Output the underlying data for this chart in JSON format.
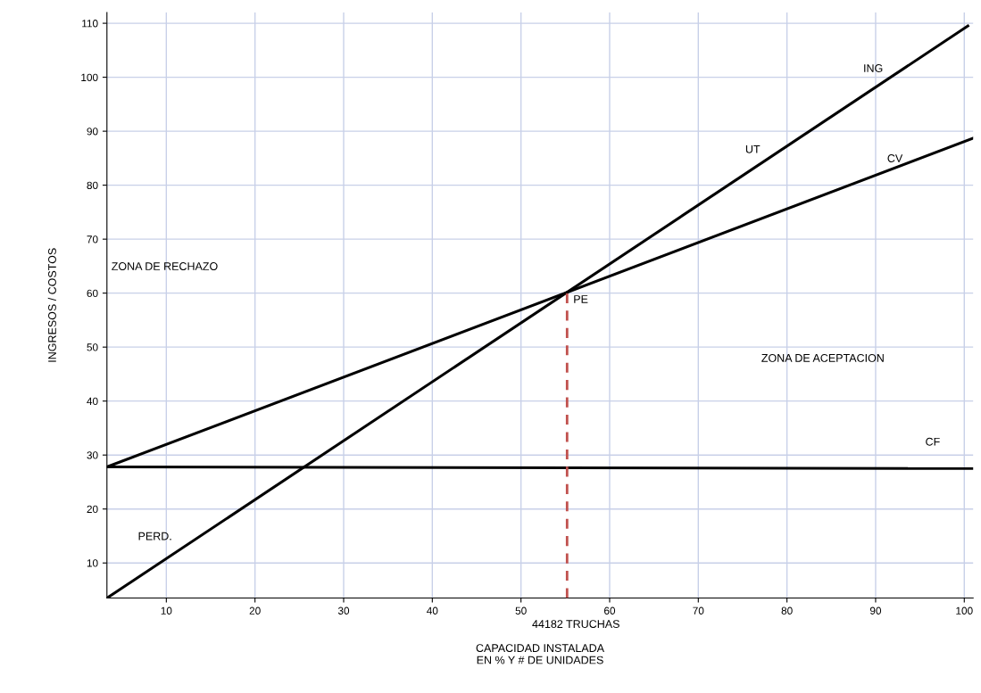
{
  "chart_data": {
    "type": "line",
    "xlabel": "CAPACIDAD INSTALADA\nEN % Y # DE UNIDADES",
    "ylabel": "INGRESOS / COSTOS",
    "xlim": [
      3.3,
      101
    ],
    "ylim": [
      3.5,
      112
    ],
    "xticks": [
      10,
      20,
      30,
      40,
      50,
      60,
      70,
      80,
      90,
      100
    ],
    "yticks": [
      10,
      20,
      30,
      40,
      50,
      60,
      70,
      80,
      90,
      100,
      110
    ],
    "grid": true,
    "legend": false,
    "marker": "none",
    "line_style": "solid",
    "series": [
      {
        "name": "ING",
        "color": "#000000",
        "x": [
          3.3,
          100.4
        ],
        "values": [
          3.5,
          109.5
        ]
      },
      {
        "name": "CV",
        "color": "#000000",
        "x": [
          3.3,
          101
        ],
        "values": [
          27.8,
          88.7
        ]
      },
      {
        "name": "CF",
        "color": "#000000",
        "x": [
          3.3,
          101
        ],
        "values": [
          27.8,
          27.5
        ]
      },
      {
        "color": "#c0504d",
        "x": [
          55.2,
          55.2
        ],
        "values": [
          3.5,
          60.2
        ],
        "line_style": "dashed"
      }
    ],
    "annotations": [
      "PE",
      "UT",
      "PERD.",
      "ZONA DE RECHAZO",
      "ZONA DE ACEPTACION",
      "44182 TRUCHAS"
    ]
  }
}
